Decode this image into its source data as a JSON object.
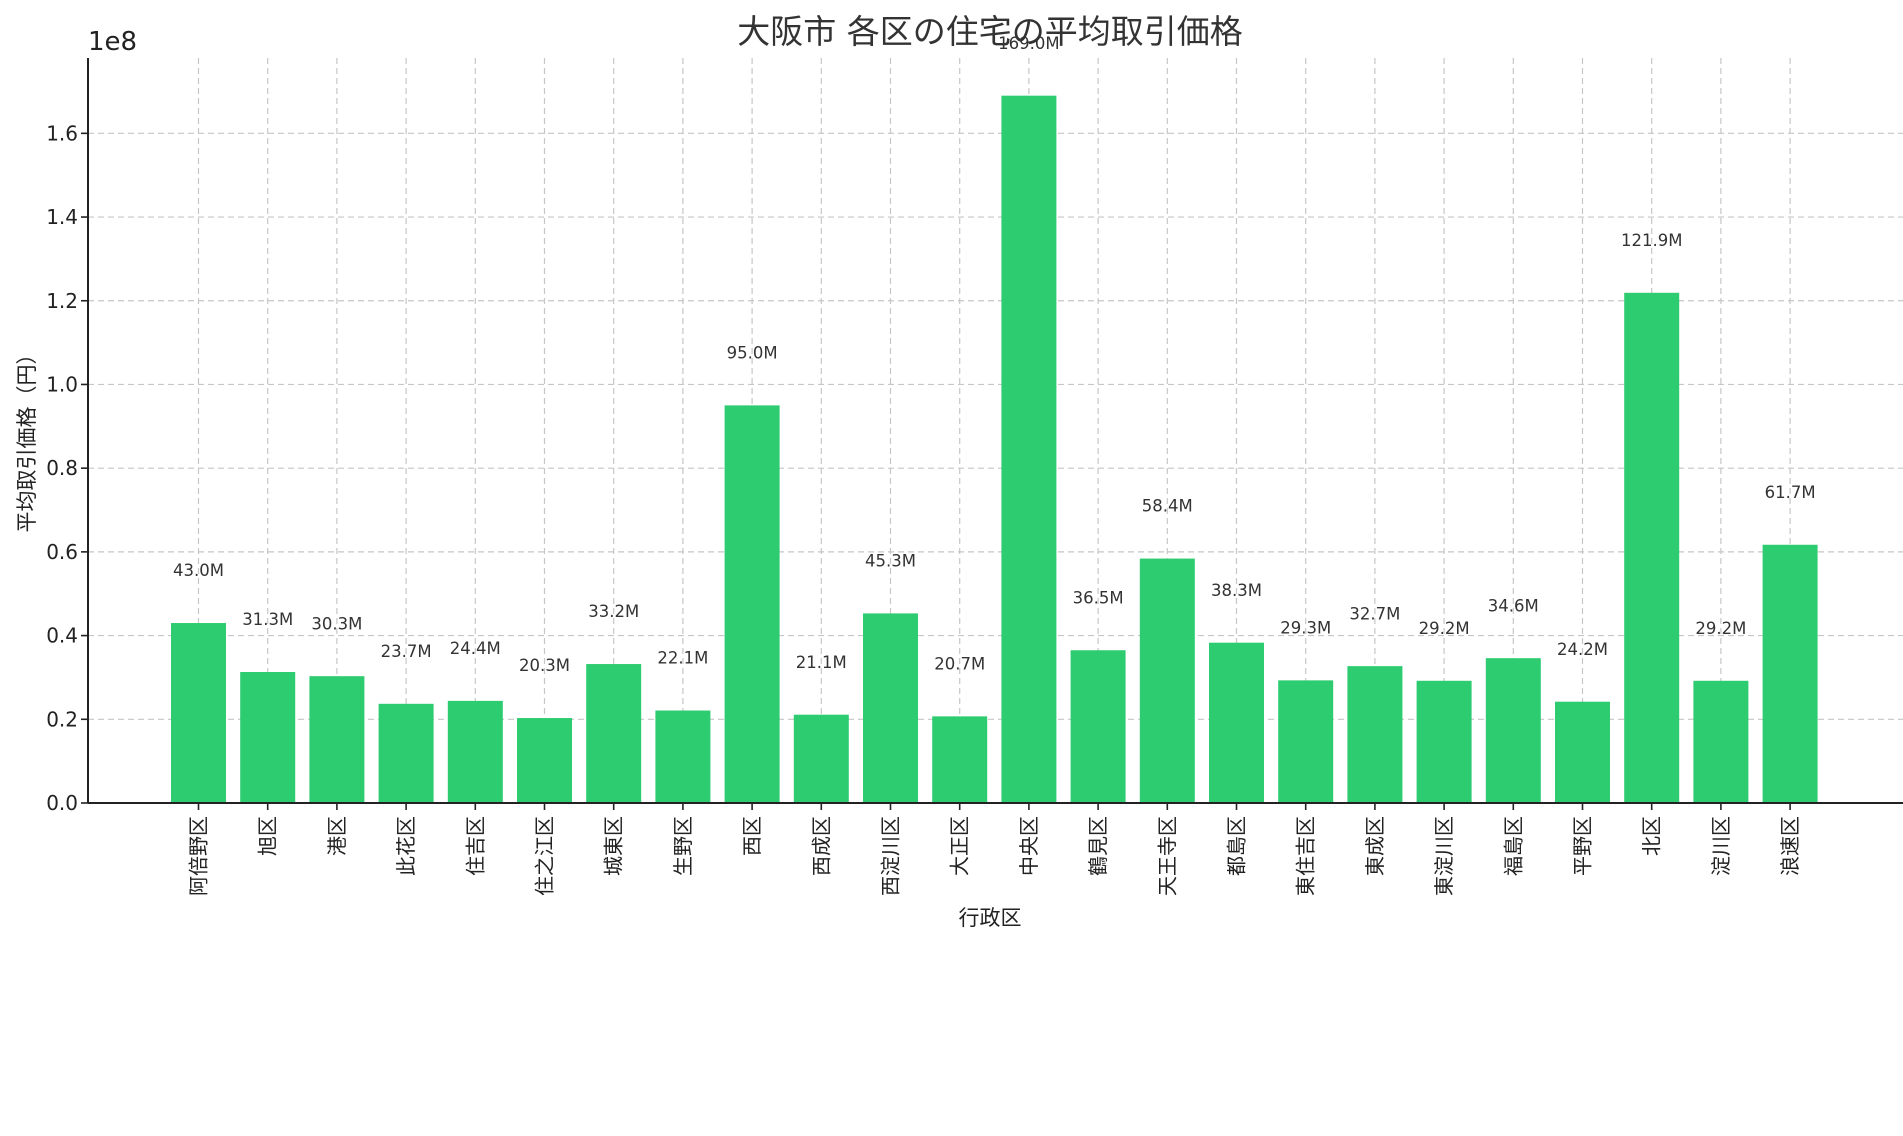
{
  "chart_data": {
    "type": "bar",
    "title": "大阪市 各区の住宅の平均取引価格",
    "xlabel": "行政区",
    "ylabel": "平均取引価格（円）",
    "y_offset_label": "1e8",
    "categories": [
      "阿倍野区",
      "旭区",
      "港区",
      "此花区",
      "住吉区",
      "住之江区",
      "城東区",
      "生野区",
      "西区",
      "西成区",
      "西淀川区",
      "大正区",
      "中央区",
      "鶴見区",
      "天王寺区",
      "都島区",
      "東住吉区",
      "東成区",
      "東淀川区",
      "福島区",
      "平野区",
      "北区",
      "淀川区",
      "浪速区"
    ],
    "values": [
      43000000,
      31300000,
      30300000,
      23700000,
      24400000,
      20300000,
      33200000,
      22100000,
      95000000,
      21100000,
      45300000,
      20700000,
      169000000,
      36500000,
      58400000,
      38300000,
      29300000,
      32700000,
      29200000,
      34600000,
      24200000,
      121900000,
      29200000,
      61700000
    ],
    "data_labels": [
      "43.0M",
      "31.3M",
      "30.3M",
      "23.7M",
      "24.4M",
      "20.3M",
      "33.2M",
      "22.1M",
      "95.0M",
      "21.1M",
      "45.3M",
      "20.7M",
      "169.0M",
      "36.5M",
      "58.4M",
      "38.3M",
      "29.3M",
      "32.7M",
      "29.2M",
      "34.6M",
      "24.2M",
      "121.9M",
      "29.2M",
      "61.7M"
    ],
    "yticks": [
      0,
      0.2,
      0.4,
      0.6,
      0.8,
      1.0,
      1.2,
      1.4,
      1.6
    ],
    "ytick_labels": [
      "0.0",
      "0.2",
      "0.4",
      "0.6",
      "0.8",
      "1.0",
      "1.2",
      "1.4",
      "1.6"
    ],
    "ylim": [
      0,
      178000000
    ],
    "grid": true,
    "bar_color": "#2ecc71"
  }
}
